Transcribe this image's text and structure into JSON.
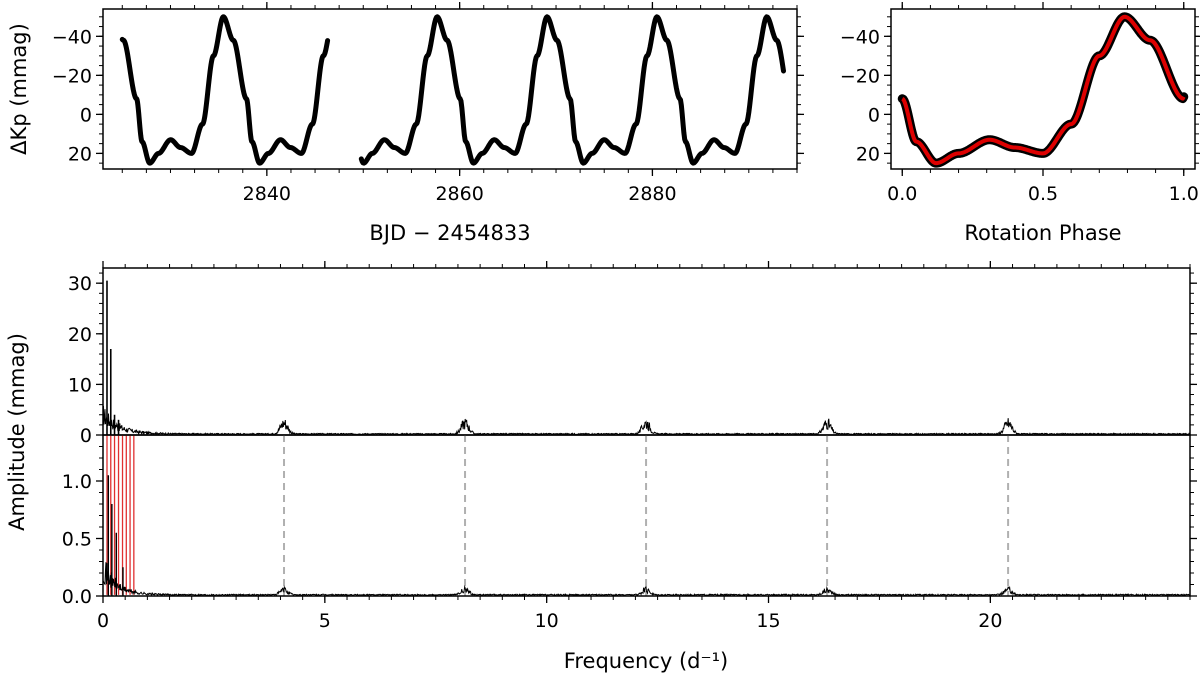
{
  "chart_data": [
    {
      "id": "light-curve",
      "type": "line",
      "title": "",
      "xlabel": "BJD − 2454833",
      "ylabel": "ΔKp (mmag)",
      "y_inverted": true,
      "xlim": [
        2823,
        2895
      ],
      "ylim": [
        28,
        -54
      ],
      "xticks": [
        2840,
        2860,
        2880
      ],
      "yticks": [
        -40,
        -20,
        0,
        20
      ],
      "grid": false,
      "line_color": "#000000",
      "rotation_period_days": 11.4,
      "segments": [
        {
          "x_start": 2825.0,
          "x_end": 2846.3,
          "phase_at_start": 0.87
        },
        {
          "x_start": 2849.8,
          "x_end": 2893.6,
          "phase_at_start": 0.1
        }
      ],
      "phase_curve": [
        {
          "phase": 0.0,
          "value": -8
        },
        {
          "phase": 0.05,
          "value": 14
        },
        {
          "phase": 0.12,
          "value": 25
        },
        {
          "phase": 0.2,
          "value": 20
        },
        {
          "phase": 0.31,
          "value": 13
        },
        {
          "phase": 0.4,
          "value": 17
        },
        {
          "phase": 0.5,
          "value": 20
        },
        {
          "phase": 0.6,
          "value": 5
        },
        {
          "phase": 0.7,
          "value": -30
        },
        {
          "phase": 0.79,
          "value": -50
        },
        {
          "phase": 0.88,
          "value": -38
        },
        {
          "phase": 1.0,
          "value": -8
        }
      ]
    },
    {
      "id": "phase-folded",
      "type": "scatter",
      "title": "",
      "xlabel": "Rotation Phase",
      "ylabel": "",
      "y_inverted": true,
      "xlim": [
        -0.04,
        1.04
      ],
      "ylim": [
        28,
        -54
      ],
      "xticks": [
        0.0,
        0.5,
        1.0
      ],
      "xtick_labels": [
        "0.0",
        "0.5",
        "1.0"
      ],
      "yticks": [
        -40,
        -20,
        0,
        20
      ],
      "grid": false,
      "points_color": "#000000",
      "fit_color": "#dd0000"
    },
    {
      "id": "amplitude-spectrum",
      "type": "line",
      "title": "",
      "xlabel": "",
      "ylabel": "",
      "xlim": [
        0,
        24.5
      ],
      "ylim": [
        0,
        33
      ],
      "yticks": [
        0,
        10,
        20,
        30
      ],
      "grid": false,
      "line_color": "#000000",
      "peaks": [
        {
          "x": 0.09,
          "y": 30.5
        },
        {
          "x": 0.175,
          "y": 17
        },
        {
          "x": 0.26,
          "y": 4
        },
        {
          "x": 0.35,
          "y": 3
        }
      ],
      "harmonic_clusters": [
        4.08,
        8.16,
        12.24,
        16.32,
        20.4
      ],
      "cluster_height": 2.5
    },
    {
      "id": "residual-spectrum",
      "type": "line",
      "title": "",
      "xlabel": "Frequency (d⁻¹)",
      "ylabel": "",
      "xlim": [
        0,
        24.5
      ],
      "ylim": [
        0,
        1.4
      ],
      "xticks": [
        0,
        5,
        10,
        15,
        20
      ],
      "yticks": [
        0.0,
        0.5,
        1.0
      ],
      "ytick_labels": [
        "0.0",
        "0.5",
        "1.0"
      ],
      "grid": false,
      "line_color": "#000000",
      "peaks": [
        {
          "x": 0.12,
          "y": 1.05
        },
        {
          "x": 0.2,
          "y": 0.8
        },
        {
          "x": 0.3,
          "y": 0.55
        },
        {
          "x": 0.45,
          "y": 0.25
        }
      ],
      "red_lines_color": "#e03030",
      "red_lines_x": [
        0.09,
        0.175,
        0.26,
        0.35,
        0.44,
        0.525,
        0.61,
        0.695
      ],
      "dashed_lines_color": "#b0b0b0",
      "dashed_lines_x": [
        4.08,
        8.16,
        12.24,
        16.32,
        20.4
      ],
      "harmonic_clusters": [
        4.08,
        8.16,
        12.24,
        16.32,
        20.4
      ],
      "cluster_height": 0.05
    }
  ],
  "shared_ylabel": "Amplitude (mmag)"
}
